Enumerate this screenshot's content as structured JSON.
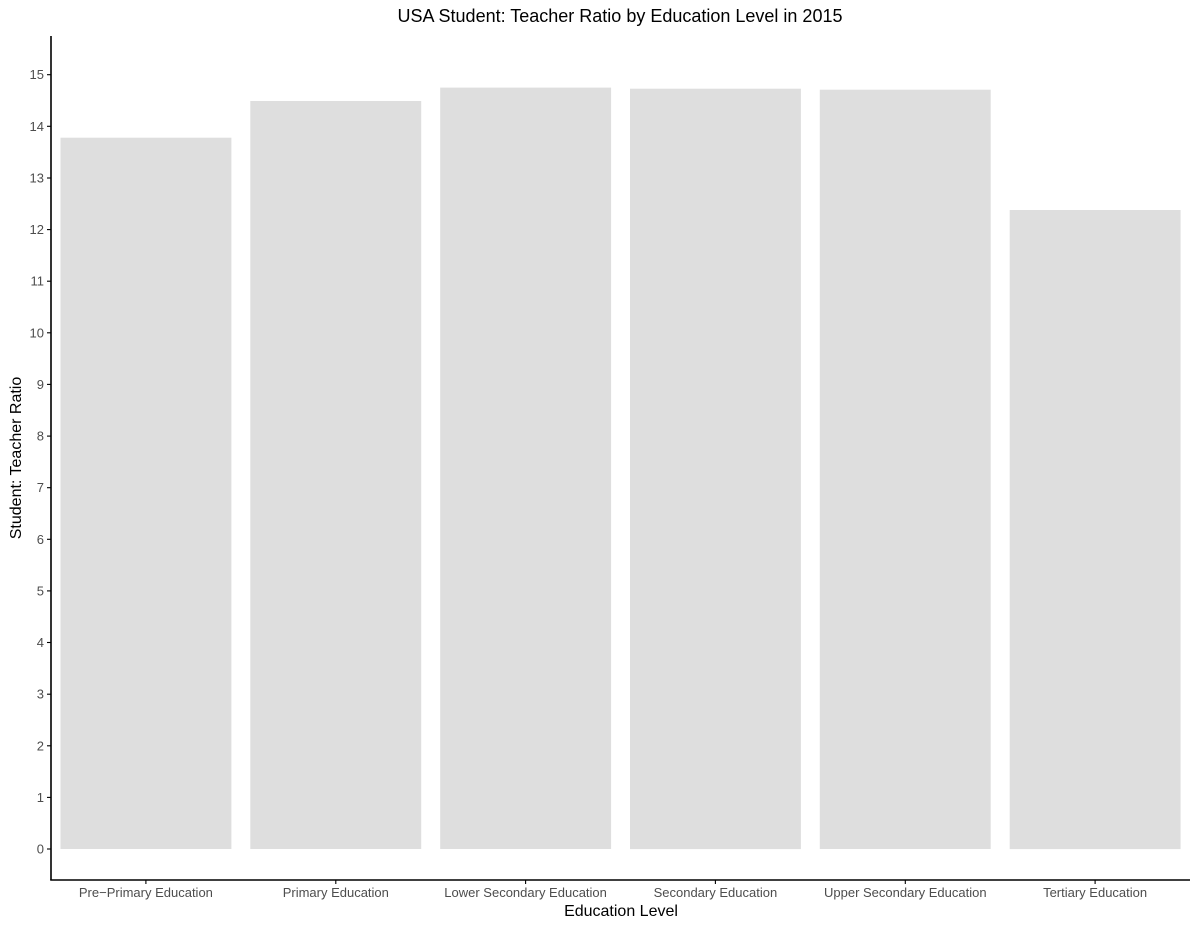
{
  "chart_data": {
    "type": "bar",
    "title": "USA Student: Teacher Ratio by Education Level in 2015",
    "xlabel": "Education Level",
    "ylabel": "Student: Teacher Ratio",
    "categories": [
      "Pre−Primary Education",
      "Primary Education",
      "Lower Secondary Education",
      "Secondary Education",
      "Upper Secondary Education",
      "Tertiary Education"
    ],
    "values": [
      13.78,
      14.49,
      14.75,
      14.73,
      14.71,
      12.38
    ],
    "ylim": [
      -0.6,
      15.75
    ],
    "yticks": [
      0,
      1,
      2,
      3,
      4,
      5,
      6,
      7,
      8,
      9,
      10,
      11,
      12,
      13,
      14,
      15
    ],
    "grid": false,
    "legend": "none",
    "colors": {
      "bar": "#dedede",
      "axis": "#000000",
      "tick_text": "#4d4d4d"
    }
  }
}
